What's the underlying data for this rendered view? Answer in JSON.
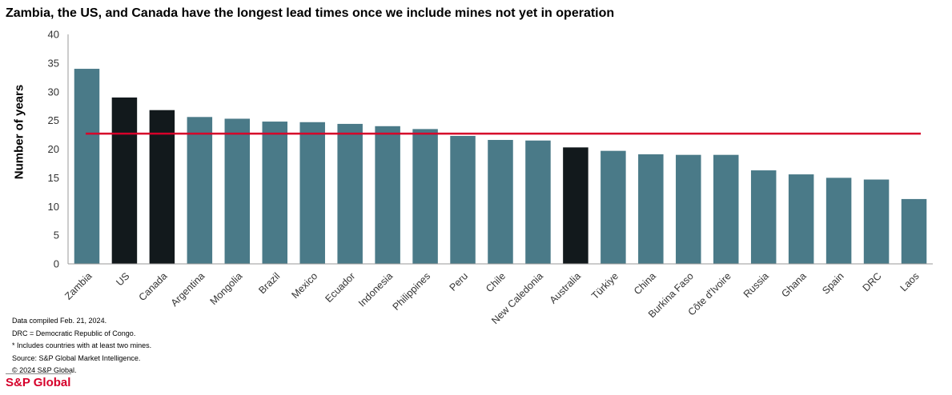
{
  "chart_data": {
    "type": "bar",
    "title": "Zambia, the US, and Canada have the longest lead times once we include mines not yet in operation",
    "xlabel": "",
    "ylabel": "Number of years",
    "ylim": [
      0,
      40
    ],
    "yticks": [
      0,
      5,
      10,
      15,
      20,
      25,
      30,
      35,
      40
    ],
    "categories": [
      "Zambia",
      "US",
      "Canada",
      "Argentina",
      "Mongolia",
      "Brazil",
      "Mexico",
      "Ecuador",
      "Indonesia",
      "Philippines",
      "Peru",
      "Chile",
      "New Caledonia",
      "Australia",
      "Türkiye",
      "China",
      "Burkina Faso",
      "Côte d'Ivoire",
      "Russia",
      "Ghana",
      "Spain",
      "DRC",
      "Laos"
    ],
    "values": [
      34.0,
      29.0,
      26.8,
      25.6,
      25.3,
      24.8,
      24.7,
      24.4,
      24.0,
      23.5,
      22.3,
      21.6,
      21.5,
      20.3,
      19.7,
      19.1,
      19.0,
      19.0,
      16.3,
      15.6,
      15.0,
      14.7,
      11.3
    ],
    "highlighted": [
      "US",
      "Canada",
      "Australia"
    ],
    "average_line": 22.7,
    "colors": {
      "bar": "#4a7a88",
      "highlight": "#12191c",
      "average": "#d6002a",
      "axis": "#999999"
    }
  },
  "notes": [
    "Data compiled Feb. 21, 2024.",
    "DRC = Democratic Republic of Congo.",
    "* Includes countries with at least two mines.",
    "Source: S&P Global Market Intelligence.",
    "© 2024 S&P Global."
  ],
  "brand": "S&P Global"
}
